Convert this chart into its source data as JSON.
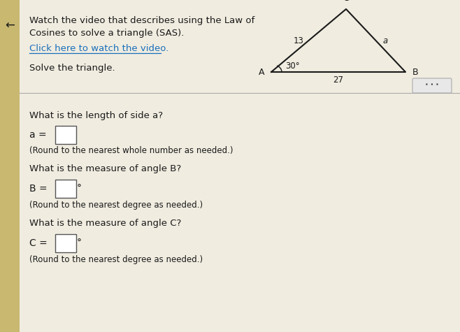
{
  "bg_color": "#f0ece0",
  "left_bar_color": "#c8b870",
  "title_line1": "Watch the video that describes using the Law of",
  "title_line2": "Cosines to solve a triangle (SAS).",
  "link_text": "Click here to watch the video.",
  "solve_text": "Solve the triangle.",
  "separator_color": "#aaaaaa",
  "q1_text": "What is the length of side a?",
  "q1_note": "(Round to the nearest whole number as needed.)",
  "q2_text": "What is the measure of angle B?",
  "q2_note": "(Round to the nearest degree as needed.)",
  "q3_text": "What is the measure of angle C?",
  "q3_note": "(Round to the nearest degree as needed.)",
  "text_color": "#1a1a1a",
  "link_color": "#1a6fba",
  "box_color": "#ffffff",
  "box_edge_color": "#555555",
  "tri_label_A": "A",
  "tri_label_B": "B",
  "tri_label_C": "C",
  "tri_side_AC": "13",
  "tri_side_BC": "a",
  "tri_side_AB": "27",
  "tri_angle_A": "30°"
}
